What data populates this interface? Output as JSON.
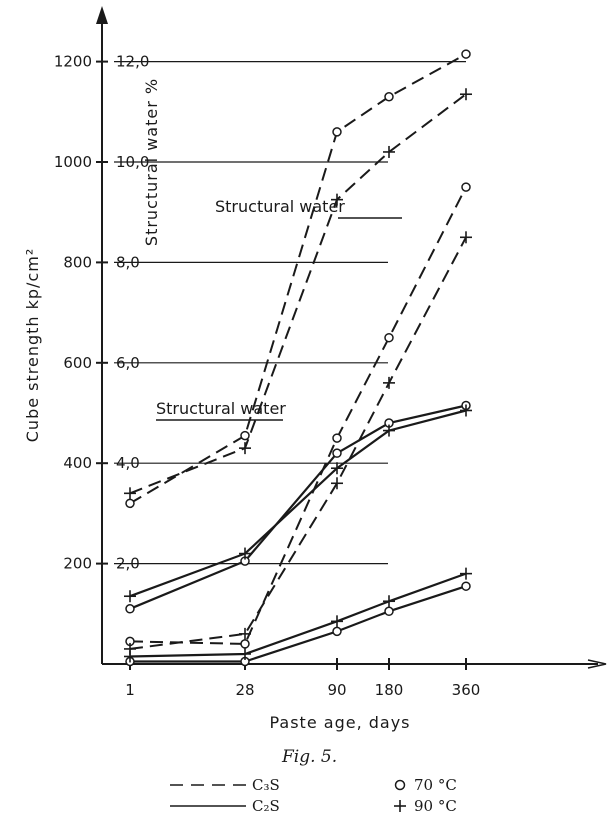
{
  "chart_data": {
    "type": "line",
    "caption": "Fig. 5.",
    "xlabel": "Paste age, days",
    "ylabel_left": "Cube strength kp/cm²",
    "ylabel_right": "Structural water %",
    "x_ticks": [
      "1",
      "28",
      "90",
      "180",
      "360"
    ],
    "y_left_ticks": [
      "200",
      "400",
      "600",
      "800",
      "1000",
      "1200"
    ],
    "y_right_ticks": [
      "2,0",
      "4,0",
      "6,0",
      "8,0",
      "10,0",
      "12,0"
    ],
    "ylim_left": [
      0,
      1200
    ],
    "grid": "horizontal",
    "annotations": [
      "Structural water",
      "Structural water"
    ],
    "series": [
      {
        "line": "dashed",
        "marker": "circle",
        "x": [
          "1",
          "28",
          "90",
          "180",
          "360"
        ],
        "cube_strength": [
          320,
          455,
          1060,
          1130,
          1215
        ]
      },
      {
        "line": "dashed",
        "marker": "plus",
        "x": [
          "1",
          "28",
          "90",
          "180",
          "360"
        ],
        "cube_strength": [
          340,
          430,
          925,
          1020,
          1135
        ]
      },
      {
        "line": "dashed",
        "marker": "circle",
        "x": [
          "1",
          "28",
          "90",
          "180",
          "360"
        ],
        "cube_strength": [
          45,
          40,
          450,
          650,
          950
        ]
      },
      {
        "line": "dashed",
        "marker": "plus",
        "x": [
          "1",
          "28",
          "90",
          "180",
          "360"
        ],
        "cube_strength": [
          30,
          60,
          360,
          560,
          850
        ]
      },
      {
        "line": "solid",
        "marker": "circle",
        "x": [
          "1",
          "28",
          "90",
          "180",
          "360"
        ],
        "cube_strength": [
          110,
          205,
          420,
          480,
          515
        ]
      },
      {
        "line": "solid",
        "marker": "plus",
        "x": [
          "1",
          "28",
          "90",
          "180",
          "360"
        ],
        "cube_strength": [
          135,
          220,
          390,
          465,
          505
        ]
      },
      {
        "line": "solid",
        "marker": "circle",
        "x": [
          "1",
          "28",
          "90",
          "180",
          "360"
        ],
        "cube_strength": [
          5,
          5,
          65,
          105,
          155
        ]
      },
      {
        "line": "solid",
        "marker": "plus",
        "x": [
          "1",
          "28",
          "90",
          "180",
          "360"
        ],
        "cube_strength": [
          15,
          20,
          85,
          125,
          180
        ]
      }
    ],
    "legend": {
      "placement": "bottom",
      "line_items": [
        {
          "style": "dashed",
          "label": "C₃S"
        },
        {
          "style": "solid",
          "label": "C₂S"
        }
      ],
      "marker_items": [
        {
          "marker": "circle",
          "label": "70 °C"
        },
        {
          "marker": "plus",
          "label": "90 °C"
        }
      ]
    }
  }
}
